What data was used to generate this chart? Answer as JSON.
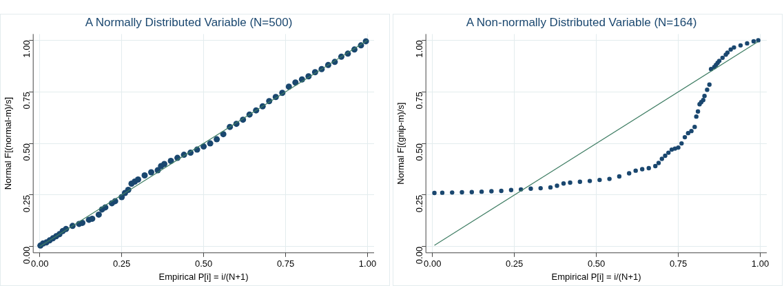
{
  "chart_data": [
    {
      "type": "scatter",
      "title": "A Normally Distributed Variable (N=500)",
      "xlabel": "Empirical P[i] = i/(N+1)",
      "ylabel": "Normal F[(normal-m)/s]",
      "xlim": [
        -0.02,
        1.02
      ],
      "ylim": [
        -0.03,
        1.03
      ],
      "xticks": [
        {
          "value": 0,
          "label": "0.00"
        },
        {
          "value": 0.25,
          "label": "0.25"
        },
        {
          "value": 0.5,
          "label": "0.50"
        },
        {
          "value": 0.75,
          "label": "0.75"
        },
        {
          "value": 1,
          "label": "1.00"
        }
      ],
      "yticks": [
        {
          "value": 0,
          "label": "0.00"
        },
        {
          "value": 0.25,
          "label": "0.25"
        },
        {
          "value": 0.5,
          "label": "0.50"
        },
        {
          "value": 0.75,
          "label": "0.75"
        },
        {
          "value": 1,
          "label": "1.00"
        }
      ],
      "grid": true,
      "legend": false,
      "series": [
        {
          "type": "scatter",
          "marker": "circle",
          "color": "#1a476f",
          "x": [
            0.002,
            0.01,
            0.02,
            0.03,
            0.04,
            0.05,
            0.06,
            0.07,
            0.08,
            0.1,
            0.12,
            0.13,
            0.15,
            0.16,
            0.18,
            0.19,
            0.2,
            0.22,
            0.23,
            0.25,
            0.26,
            0.27,
            0.28,
            0.29,
            0.3,
            0.32,
            0.34,
            0.36,
            0.37,
            0.38,
            0.4,
            0.42,
            0.44,
            0.46,
            0.48,
            0.5,
            0.52,
            0.54,
            0.56,
            0.58,
            0.6,
            0.62,
            0.64,
            0.66,
            0.68,
            0.7,
            0.72,
            0.74,
            0.76,
            0.78,
            0.8,
            0.82,
            0.84,
            0.86,
            0.88,
            0.9,
            0.92,
            0.94,
            0.96,
            0.98,
            0.995
          ],
          "values": [
            0.005,
            0.015,
            0.02,
            0.03,
            0.04,
            0.05,
            0.06,
            0.075,
            0.085,
            0.1,
            0.11,
            0.115,
            0.13,
            0.135,
            0.155,
            0.18,
            0.19,
            0.21,
            0.22,
            0.24,
            0.26,
            0.275,
            0.305,
            0.315,
            0.325,
            0.345,
            0.36,
            0.37,
            0.39,
            0.4,
            0.415,
            0.43,
            0.445,
            0.455,
            0.47,
            0.485,
            0.5,
            0.52,
            0.545,
            0.58,
            0.595,
            0.615,
            0.64,
            0.66,
            0.68,
            0.705,
            0.725,
            0.745,
            0.775,
            0.795,
            0.81,
            0.825,
            0.845,
            0.86,
            0.88,
            0.895,
            0.92,
            0.935,
            0.955,
            0.975,
            0.995
          ]
        },
        {
          "type": "line",
          "marker": "none",
          "color": "#3e7d63",
          "x": [
            0,
            1
          ],
          "values": [
            0,
            1
          ]
        }
      ]
    },
    {
      "type": "scatter",
      "title": "A Non-normally Distributed Variable (N=164)",
      "xlabel": "Empirical P[i] = i/(N+1)",
      "ylabel": "Normal F[(gnip-m)/s]",
      "xlim": [
        -0.02,
        1.02
      ],
      "ylim": [
        -0.03,
        1.03
      ],
      "xticks": [
        {
          "value": 0,
          "label": "0.00"
        },
        {
          "value": 0.25,
          "label": "0.25"
        },
        {
          "value": 0.5,
          "label": "0.50"
        },
        {
          "value": 0.75,
          "label": "0.75"
        },
        {
          "value": 1,
          "label": "1.00"
        }
      ],
      "yticks": [
        {
          "value": 0,
          "label": "0.00"
        },
        {
          "value": 0.25,
          "label": "0.25"
        },
        {
          "value": 0.5,
          "label": "0.50"
        },
        {
          "value": 0.75,
          "label": "0.75"
        },
        {
          "value": 1,
          "label": "1.00"
        }
      ],
      "grid": true,
      "legend": false,
      "series": [
        {
          "type": "scatter",
          "marker": "circle",
          "color": "#1a476f",
          "x": [
            0.006,
            0.03,
            0.06,
            0.09,
            0.12,
            0.15,
            0.18,
            0.21,
            0.24,
            0.27,
            0.3,
            0.33,
            0.36,
            0.38,
            0.4,
            0.42,
            0.45,
            0.48,
            0.51,
            0.54,
            0.57,
            0.6,
            0.62,
            0.64,
            0.66,
            0.68,
            0.69,
            0.7,
            0.71,
            0.72,
            0.73,
            0.74,
            0.75,
            0.76,
            0.77,
            0.78,
            0.79,
            0.8,
            0.805,
            0.81,
            0.815,
            0.82,
            0.826,
            0.83,
            0.838,
            0.845,
            0.85,
            0.86,
            0.865,
            0.87,
            0.875,
            0.885,
            0.895,
            0.9,
            0.91,
            0.92,
            0.94,
            0.96,
            0.98,
            0.994
          ],
          "values": [
            0.26,
            0.261,
            0.262,
            0.263,
            0.264,
            0.266,
            0.268,
            0.27,
            0.274,
            0.277,
            0.281,
            0.283,
            0.287,
            0.295,
            0.306,
            0.31,
            0.314,
            0.318,
            0.323,
            0.328,
            0.34,
            0.355,
            0.368,
            0.375,
            0.38,
            0.39,
            0.405,
            0.425,
            0.44,
            0.455,
            0.47,
            0.475,
            0.48,
            0.5,
            0.53,
            0.55,
            0.56,
            0.58,
            0.63,
            0.655,
            0.69,
            0.7,
            0.71,
            0.73,
            0.76,
            0.785,
            0.86,
            0.87,
            0.88,
            0.89,
            0.9,
            0.915,
            0.93,
            0.94,
            0.955,
            0.965,
            0.975,
            0.985,
            0.995,
            1.0
          ]
        },
        {
          "type": "line",
          "marker": "none",
          "color": "#3e7d63",
          "x": [
            0.006,
            0.994
          ],
          "values": [
            0.006,
            0.994
          ]
        }
      ]
    }
  ]
}
